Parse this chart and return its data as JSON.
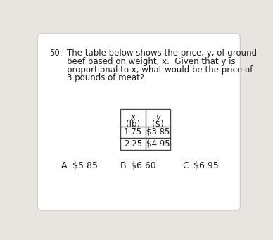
{
  "question_number": "50.",
  "question_text_lines": [
    "The table below shows the price, y, of ground",
    "beef based on weight, x.  Given that y is",
    "proportional to x, what would be the price of",
    "3 pounds of meat?"
  ],
  "table_header_col1_line1": "x",
  "table_header_col1_line2": "(lb)",
  "table_header_col2_line1": "y",
  "table_header_col2_line2": "($)",
  "table_data": [
    [
      "1.75",
      "$3.85"
    ],
    [
      "2.25",
      "$4.95"
    ]
  ],
  "answers": [
    [
      "A.",
      "$5.85"
    ],
    [
      "B.",
      "$6.60"
    ],
    [
      "C.",
      "$6.95"
    ]
  ],
  "bg_color": "#e8e5e0",
  "card_color": "#ffffff",
  "text_color": "#1a1a1a",
  "font_size_question": 8.5,
  "font_size_table": 8.5,
  "font_size_answers": 9.0,
  "font_family": "DejaVu Sans"
}
